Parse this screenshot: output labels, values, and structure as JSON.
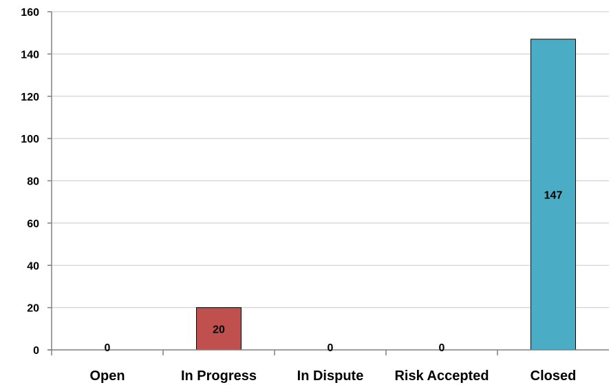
{
  "chart_data": {
    "type": "bar",
    "categories": [
      "Open",
      "In Progress",
      "In Dispute",
      "Risk Accepted",
      "Closed"
    ],
    "values": [
      0,
      20,
      0,
      0,
      147
    ],
    "data_labels": [
      "0",
      "20",
      "0",
      "0",
      "147"
    ],
    "bar_colors": [
      "#c0504d",
      "#c0504d",
      "#c0504d",
      "#c0504d",
      "#4bacc6"
    ],
    "ylim": [
      0,
      160
    ],
    "y_ticks": [
      0,
      20,
      40,
      60,
      80,
      100,
      120,
      140,
      160
    ],
    "y_tick_labels": [
      "0",
      "20",
      "40",
      "60",
      "80",
      "100",
      "120",
      "140",
      "160"
    ],
    "grid": true,
    "legend": "none"
  }
}
